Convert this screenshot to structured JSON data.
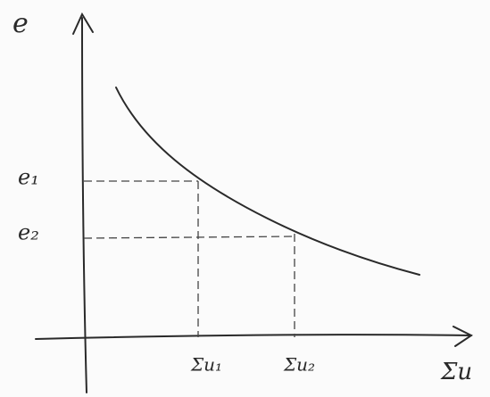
{
  "axes": {
    "y_label": "e",
    "x_label": "Σu"
  },
  "y_ticks": [
    "e₁",
    "e₂"
  ],
  "x_ticks": [
    "Σu₁",
    "Σu₂"
  ]
}
